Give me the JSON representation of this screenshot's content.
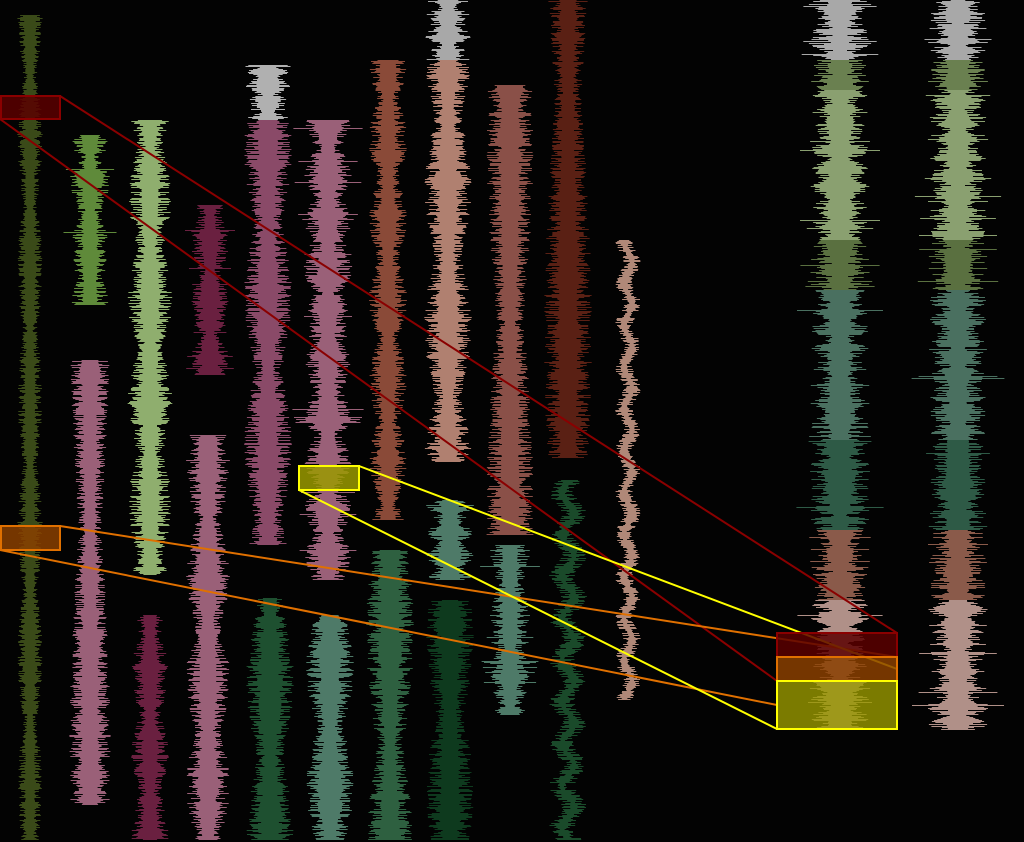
{
  "view": {
    "background": "#030303",
    "tracks": [
      {
        "id": "track-1",
        "color": "#3a4a18"
      },
      {
        "id": "track-2",
        "color": "#5f8a3a"
      },
      {
        "id": "track-3",
        "color": "#8fae6e"
      },
      {
        "id": "track-4",
        "color": "#6a2040"
      },
      {
        "id": "track-5",
        "color": "#8a4a68",
        "cap_color": "#b0b0b0"
      },
      {
        "id": "track-6",
        "color": "#9a6078"
      },
      {
        "id": "track-7",
        "color": "#8a4a38"
      },
      {
        "id": "track-8",
        "color": "#b08070",
        "cap_color": "#a8a8a8"
      },
      {
        "id": "track-9",
        "color": "#8a5048"
      },
      {
        "id": "track-10",
        "color": "#5a2014"
      },
      {
        "id": "track-11",
        "color": "#b08878"
      },
      {
        "id": "track-12",
        "color": "#9a6078"
      },
      {
        "id": "track-13",
        "color": "#6a2040"
      },
      {
        "id": "track-14",
        "color": "#9a6078"
      },
      {
        "id": "track-15",
        "color": "#1e5030"
      },
      {
        "id": "track-16",
        "color": "#4e7a68"
      },
      {
        "id": "track-17",
        "color": "#2e6040"
      },
      {
        "id": "track-18",
        "color": "#0e3a1e",
        "cap_color": "#4e7a68"
      },
      {
        "id": "track-19",
        "color": "#4e7a68"
      },
      {
        "id": "track-20",
        "color": "#1a4a2a"
      }
    ],
    "overview_columns": {
      "segment_colors": [
        "#a8a8a8",
        "#6a8050",
        "#8aa070",
        "#5a7040",
        "#4a7060",
        "#2e5a46",
        "#8a5a4a",
        "#b09088"
      ]
    },
    "selections": [
      {
        "name": "red",
        "fill": "#5a0000",
        "stroke": "#8a0000",
        "link": "#8a0000"
      },
      {
        "name": "orange",
        "fill": "#8a4000",
        "stroke": "#e07000",
        "link": "#e07000"
      },
      {
        "name": "yellow",
        "fill": "#9a9a00",
        "stroke": "#ffff00",
        "link": "#ffff00"
      }
    ]
  }
}
